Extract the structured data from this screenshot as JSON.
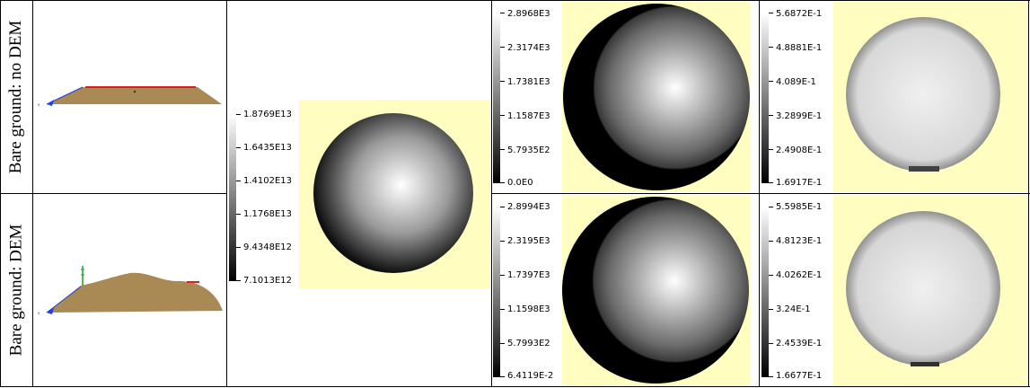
{
  "rows": [
    {
      "label": "Bare ground: no DEM"
    },
    {
      "label": "Bare ground: DEM"
    }
  ],
  "shared_scale": {
    "labels": [
      "1.8769E13",
      "1.6435E13",
      "1.4102E13",
      "1.1768E13",
      "9.4348E12",
      "7.1013E12"
    ]
  },
  "scales": {
    "r0_c3": {
      "labels": [
        "2.8968E3",
        "2.3174E3",
        "1.7381E3",
        "1.1587E3",
        "5.7935E2",
        "0.0E0"
      ]
    },
    "r0_c4": {
      "labels": [
        "5.6872E-1",
        "4.8881E-1",
        "4.089E-1",
        "3.2899E-1",
        "2.4908E-1",
        "1.6917E-1"
      ]
    },
    "r1_c3": {
      "labels": [
        "2.8994E3",
        "2.3195E3",
        "1.7397E3",
        "1.1598E3",
        "5.7993E2",
        "6.4119E-2"
      ]
    },
    "r1_c4": {
      "labels": [
        "5.5985E-1",
        "4.8123E-1",
        "4.0262E-1",
        "3.24E-1",
        "2.4539E-1",
        "1.6677E-1"
      ]
    }
  },
  "colors": {
    "map_background": "#fffec0",
    "terrain": "#a98a55",
    "sensor_line": "#e02020",
    "axis_blue": "#2040e0",
    "axis_green": "#20a020"
  }
}
